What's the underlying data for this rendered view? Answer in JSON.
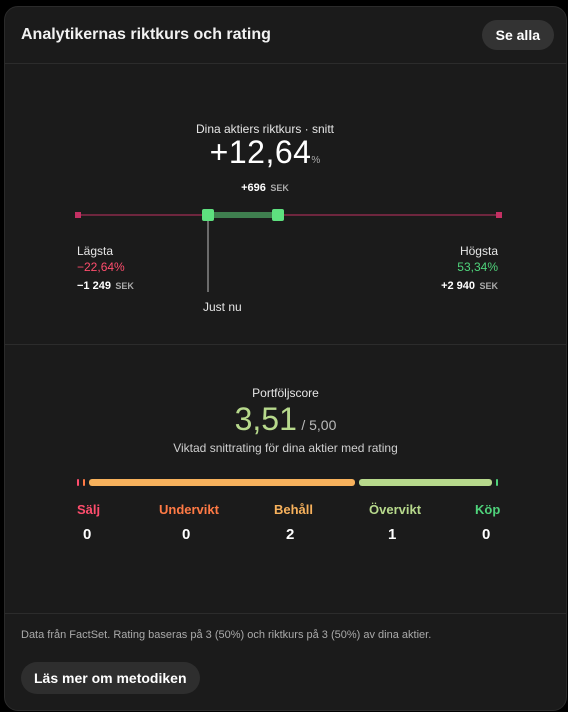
{
  "header": {
    "title": "Analytikernas riktkurs och rating",
    "see_all_label": "Se alla"
  },
  "target": {
    "label": "Dina aktiers riktkurs · snitt",
    "avg_pct": "+12,64",
    "pct_unit": "%",
    "avg_sek": "+696",
    "sek_unit": "SEK",
    "low": {
      "label": "Lägsta",
      "pct": "−22,64%",
      "sek": "−1 249"
    },
    "high": {
      "label": "Högsta",
      "pct": "53,34%",
      "sek": "+2 940"
    },
    "now_label": "Just nu",
    "colors": {
      "range_line": "#8a2a4a",
      "range_dot": "#c43063",
      "current_bar": "#3f7f4f",
      "current_dot": "#5ee07f"
    }
  },
  "rating": {
    "label": "Portföljscore",
    "score": "3,51",
    "max": "/ 5,00",
    "subtitle": "Viktad snittrating för dina aktier med rating",
    "categories": [
      {
        "label": "Sälj",
        "count": "0",
        "color": "#ff4d6d"
      },
      {
        "label": "Undervikt",
        "count": "0",
        "color": "#ff7a45"
      },
      {
        "label": "Behåll",
        "count": "2",
        "color": "#f7b15c"
      },
      {
        "label": "Övervikt",
        "count": "1",
        "color": "#b7d98c"
      },
      {
        "label": "Köp",
        "count": "0",
        "color": "#4fd37b"
      }
    ],
    "bar_colors": {
      "sell": "#ff4d6d",
      "underweight": "#ff7a45",
      "hold": "#f7b15c",
      "overweight": "#b7d98c",
      "buy": "#4fd37b"
    }
  },
  "footer": {
    "text": "Data från FactSet. Rating baseras på 3 (50%) och riktkurs på 3 (50%) av dina aktier.",
    "method_label": "Läs mer om metodiken"
  }
}
